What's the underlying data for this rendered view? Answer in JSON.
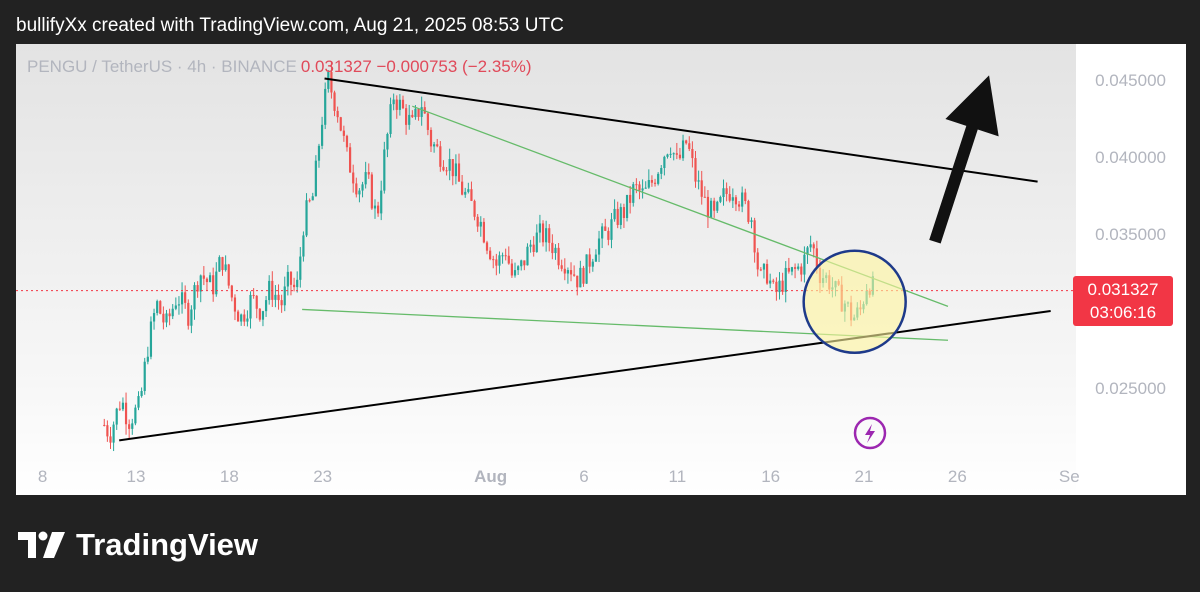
{
  "header": {
    "caption": "bullifyXx created with TradingView.com, Aug 21, 2025 08:53 UTC"
  },
  "legend": {
    "symbol": "PENGU / TetherUS · 4h · BINANCE",
    "values": "0.031327 −0.000753 (−2.35%)"
  },
  "price_tag": {
    "price": "0.031327",
    "countdown": "03:06:16"
  },
  "footer": {
    "brand": "TradingView"
  },
  "colors": {
    "up": "#26a69a",
    "down": "#ef5350",
    "trendline": "#000000",
    "channel": "#66bb6a",
    "highlight_fill": "#fff59d",
    "highlight_stroke": "#1e3a8a",
    "bolt": "#9c27b0",
    "price_line": "#f23645"
  },
  "chart_data": {
    "type": "candlestick",
    "symbol": "PENGU / TetherUS",
    "interval": "4h",
    "exchange": "BINANCE",
    "last_price": 0.031327,
    "change": -0.000753,
    "change_pct": -2.35,
    "ylim": [
      0.0205,
      0.0466
    ],
    "y_ticks": [
      "0.045000",
      "0.040000",
      "0.035000",
      "0.025000"
    ],
    "x_ticks": [
      {
        "label": "8",
        "day": 8
      },
      {
        "label": "13",
        "day": 13
      },
      {
        "label": "18",
        "day": 18
      },
      {
        "label": "23",
        "day": 23
      },
      {
        "label": "Aug",
        "day": 32
      },
      {
        "label": "6",
        "day": 37
      },
      {
        "label": "11",
        "day": 42
      },
      {
        "label": "16",
        "day": 47
      },
      {
        "label": "21",
        "day": 52
      },
      {
        "label": "26",
        "day": 57
      },
      {
        "label": "Se",
        "day": 63
      }
    ],
    "close_path": [
      [
        11.3,
        0.0226
      ],
      [
        11.6,
        0.022
      ],
      [
        12.2,
        0.0243
      ],
      [
        12.6,
        0.0229
      ],
      [
        13.2,
        0.0238
      ],
      [
        13.6,
        0.0275
      ],
      [
        14.1,
        0.0305
      ],
      [
        14.6,
        0.029
      ],
      [
        15.2,
        0.031
      ],
      [
        15.8,
        0.0298
      ],
      [
        16.4,
        0.0325
      ],
      [
        17.1,
        0.0315
      ],
      [
        17.6,
        0.0335
      ],
      [
        18.1,
        0.031
      ],
      [
        18.6,
        0.0295
      ],
      [
        19.2,
        0.0308
      ],
      [
        19.7,
        0.03
      ],
      [
        20.2,
        0.0315
      ],
      [
        20.8,
        0.0305
      ],
      [
        21.2,
        0.032
      ],
      [
        21.6,
        0.0312
      ],
      [
        22.0,
        0.036
      ],
      [
        22.5,
        0.0375
      ],
      [
        22.9,
        0.042
      ],
      [
        23.3,
        0.045
      ],
      [
        23.8,
        0.043
      ],
      [
        24.3,
        0.04
      ],
      [
        24.9,
        0.038
      ],
      [
        25.4,
        0.0385
      ],
      [
        25.9,
        0.036
      ],
      [
        26.3,
        0.04
      ],
      [
        26.8,
        0.044
      ],
      [
        27.3,
        0.043
      ],
      [
        27.8,
        0.042
      ],
      [
        28.3,
        0.0435
      ],
      [
        28.8,
        0.041
      ],
      [
        29.4,
        0.04
      ],
      [
        29.9,
        0.0395
      ],
      [
        30.4,
        0.038
      ],
      [
        30.9,
        0.037
      ],
      [
        31.4,
        0.036
      ],
      [
        31.8,
        0.0345
      ],
      [
        32.3,
        0.033
      ],
      [
        32.8,
        0.034
      ],
      [
        33.2,
        0.032
      ],
      [
        33.7,
        0.033
      ],
      [
        34.2,
        0.0345
      ],
      [
        34.7,
        0.035
      ],
      [
        35.2,
        0.0345
      ],
      [
        35.7,
        0.0335
      ],
      [
        36.2,
        0.033
      ],
      [
        36.7,
        0.032
      ],
      [
        37.2,
        0.033
      ],
      [
        37.7,
        0.0345
      ],
      [
        38.2,
        0.035
      ],
      [
        38.7,
        0.036
      ],
      [
        39.2,
        0.0365
      ],
      [
        39.7,
        0.038
      ],
      [
        40.2,
        0.0375
      ],
      [
        40.7,
        0.0385
      ],
      [
        41.2,
        0.04
      ],
      [
        41.6,
        0.041
      ],
      [
        42.0,
        0.0395
      ],
      [
        42.5,
        0.041
      ],
      [
        43.0,
        0.0385
      ],
      [
        43.5,
        0.037
      ],
      [
        44.0,
        0.036
      ],
      [
        44.5,
        0.0375
      ],
      [
        45.0,
        0.038
      ],
      [
        45.5,
        0.037
      ],
      [
        46.0,
        0.036
      ],
      [
        46.4,
        0.032
      ],
      [
        46.8,
        0.0325
      ],
      [
        47.2,
        0.031
      ],
      [
        47.7,
        0.032
      ],
      [
        48.2,
        0.0325
      ],
      [
        48.7,
        0.033
      ],
      [
        49.2,
        0.0345
      ],
      [
        49.6,
        0.0325
      ],
      [
        50.1,
        0.032
      ],
      [
        50.6,
        0.031
      ],
      [
        51.0,
        0.0305
      ],
      [
        51.4,
        0.0295
      ],
      [
        51.8,
        0.03
      ],
      [
        52.2,
        0.032
      ],
      [
        52.6,
        0.0313
      ]
    ],
    "annotations": {
      "upper_trendline": [
        [
          23.1,
          0.0451
        ],
        [
          61.3,
          0.0384
        ]
      ],
      "lower_trendline": [
        [
          12.1,
          0.0216
        ],
        [
          62.0,
          0.03
        ]
      ],
      "green_descending": [
        [
          27.8,
          0.0433
        ],
        [
          56.5,
          0.0303
        ]
      ],
      "green_lower": [
        [
          21.9,
          0.0301
        ],
        [
          56.5,
          0.0281
        ]
      ],
      "arrow": [
        [
          55.8,
          0.0345
        ],
        [
          58.7,
          0.0453
        ]
      ],
      "circle": {
        "day": 51.5,
        "price": 0.0306
      }
    }
  }
}
